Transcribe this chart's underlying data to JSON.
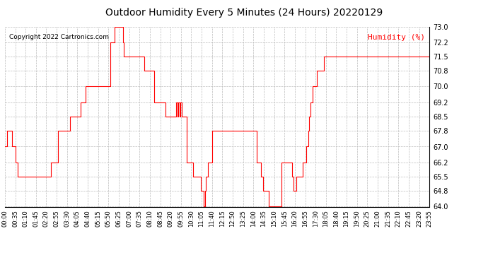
{
  "title": "Outdoor Humidity Every 5 Minutes (24 Hours) 20220129",
  "copyright_text": "Copyright 2022 Cartronics.com",
  "legend_label": "Humidity (%)",
  "background_color": "#ffffff",
  "line_color": "#ff0000",
  "grid_color": "#bbbbbb",
  "title_color": "#000000",
  "legend_color": "#ff0000",
  "copyright_color": "#000000",
  "ylim": [
    64.0,
    73.0
  ],
  "yticks": [
    64.0,
    64.8,
    65.5,
    66.2,
    67.0,
    67.8,
    68.5,
    69.2,
    70.0,
    70.8,
    71.5,
    72.2,
    73.0
  ],
  "xtick_labels": [
    "00:00",
    "00:35",
    "01:10",
    "01:45",
    "02:20",
    "02:55",
    "03:30",
    "04:05",
    "04:40",
    "05:15",
    "05:50",
    "06:25",
    "07:00",
    "07:35",
    "08:10",
    "08:45",
    "09:20",
    "09:55",
    "10:30",
    "11:05",
    "11:40",
    "12:15",
    "12:50",
    "13:25",
    "14:00",
    "14:35",
    "15:10",
    "15:45",
    "16:20",
    "16:55",
    "17:30",
    "18:05",
    "18:40",
    "19:15",
    "19:50",
    "20:25",
    "21:00",
    "21:35",
    "22:10",
    "22:45",
    "23:20",
    "23:55"
  ],
  "humidity_data": [
    67.0,
    67.0,
    67.8,
    67.8,
    67.8,
    67.8,
    67.8,
    67.0,
    67.0,
    67.0,
    66.2,
    66.2,
    65.5,
    65.5,
    65.5,
    65.5,
    65.5,
    65.5,
    65.5,
    65.5,
    65.5,
    65.5,
    65.5,
    65.5,
    65.5,
    65.5,
    65.5,
    65.5,
    65.5,
    65.5,
    65.5,
    65.5,
    65.5,
    65.5,
    65.5,
    65.5,
    65.5,
    65.5,
    65.5,
    65.5,
    65.5,
    65.5,
    65.5,
    66.2,
    66.2,
    66.2,
    66.2,
    66.2,
    66.2,
    66.2,
    67.8,
    67.8,
    67.8,
    67.8,
    67.8,
    67.8,
    67.8,
    67.8,
    67.8,
    67.8,
    67.8,
    68.5,
    68.5,
    68.5,
    68.5,
    68.5,
    68.5,
    68.5,
    68.5,
    68.5,
    68.5,
    69.2,
    69.2,
    69.2,
    69.2,
    69.2,
    70.0,
    70.0,
    70.0,
    70.0,
    70.0,
    70.0,
    70.0,
    70.0,
    70.0,
    70.0,
    70.0,
    70.0,
    70.0,
    70.0,
    70.0,
    70.0,
    70.0,
    70.0,
    70.0,
    70.0,
    70.0,
    70.0,
    70.0,
    72.2,
    72.2,
    72.2,
    72.2,
    73.0,
    73.0,
    73.0,
    73.0,
    73.0,
    73.0,
    73.0,
    73.0,
    72.2,
    71.5,
    71.5,
    71.5,
    71.5,
    71.5,
    71.5,
    71.5,
    71.5,
    71.5,
    71.5,
    71.5,
    71.5,
    71.5,
    71.5,
    71.5,
    71.5,
    71.5,
    71.5,
    71.5,
    70.8,
    70.8,
    70.8,
    70.8,
    70.8,
    70.8,
    70.8,
    70.8,
    70.8,
    69.2,
    69.2,
    69.2,
    69.2,
    69.2,
    69.2,
    69.2,
    69.2,
    69.2,
    69.2,
    69.2,
    68.5,
    68.5,
    68.5,
    68.5,
    68.5,
    68.5,
    68.5,
    68.5,
    68.5,
    68.5,
    69.2,
    68.5,
    69.2,
    68.5,
    69.2,
    68.5,
    68.5,
    68.5,
    68.5,
    68.5,
    66.2,
    66.2,
    66.2,
    66.2,
    66.2,
    66.2,
    65.5,
    65.5,
    65.5,
    65.5,
    65.5,
    65.5,
    65.5,
    64.8,
    64.8,
    64.8,
    64.0,
    64.8,
    65.5,
    65.5,
    66.2,
    66.2,
    66.2,
    66.2,
    67.8,
    67.8,
    67.8,
    67.8,
    67.8,
    67.8,
    67.8,
    67.8,
    67.8,
    67.8,
    67.8,
    67.8,
    67.8,
    67.8,
    67.8,
    67.8,
    67.8,
    67.8,
    67.8,
    67.8,
    67.8,
    67.8,
    67.8,
    67.8,
    67.8,
    67.8,
    67.8,
    67.8,
    67.8,
    67.8,
    67.8,
    67.8,
    67.8,
    67.8,
    67.8,
    67.8,
    67.8,
    67.8,
    67.8,
    67.8,
    67.8,
    67.8,
    66.2,
    66.2,
    66.2,
    66.2,
    65.5,
    65.5,
    64.8,
    64.8,
    64.8,
    64.8,
    64.8,
    64.0,
    64.0,
    64.0,
    64.0,
    64.0,
    64.0,
    64.0,
    64.0,
    64.0,
    64.0,
    64.0,
    64.0,
    66.2,
    66.2,
    66.2,
    66.2,
    66.2,
    66.2,
    66.2,
    66.2,
    66.2,
    66.2,
    65.5,
    64.8,
    64.8,
    64.8,
    65.5,
    65.5,
    65.5,
    65.5,
    65.5,
    65.5,
    66.2,
    66.2,
    66.2,
    67.0,
    67.0,
    67.8,
    68.5,
    69.2,
    69.2,
    70.0,
    70.0,
    70.0,
    70.0,
    70.8,
    70.8,
    70.8,
    70.8,
    70.8,
    70.8,
    70.8,
    71.5,
    71.5,
    71.5,
    71.5,
    71.5,
    71.5,
    71.5,
    71.5,
    71.5,
    71.5,
    71.5,
    71.5,
    71.5,
    71.5,
    71.5,
    71.5,
    71.5,
    71.5,
    71.5,
    71.5,
    71.5,
    71.5,
    71.5,
    71.5,
    71.5,
    71.5,
    71.5,
    71.5,
    71.5,
    71.5,
    71.5,
    71.5,
    71.5,
    71.5,
    71.5,
    71.5,
    71.5,
    71.5,
    71.5,
    71.5,
    71.5,
    71.5,
    71.5,
    71.5,
    71.5,
    71.5,
    71.5,
    71.5,
    71.5,
    71.5,
    71.5,
    71.5,
    71.5,
    71.5,
    71.5,
    71.5,
    71.5,
    71.5,
    71.5,
    71.5,
    71.5,
    71.5,
    71.5,
    71.5,
    71.5,
    71.5,
    71.5,
    71.5,
    71.5,
    71.5,
    71.5,
    71.5,
    71.5,
    71.5,
    71.5,
    71.5,
    71.5,
    71.5,
    71.5,
    71.5,
    71.5,
    71.5,
    71.5,
    71.5,
    71.5,
    71.5,
    71.5,
    71.5,
    71.5,
    71.5,
    71.5,
    71.5,
    71.5,
    71.5,
    71.5,
    71.5,
    71.5,
    71.5,
    71.5,
    71.5
  ]
}
